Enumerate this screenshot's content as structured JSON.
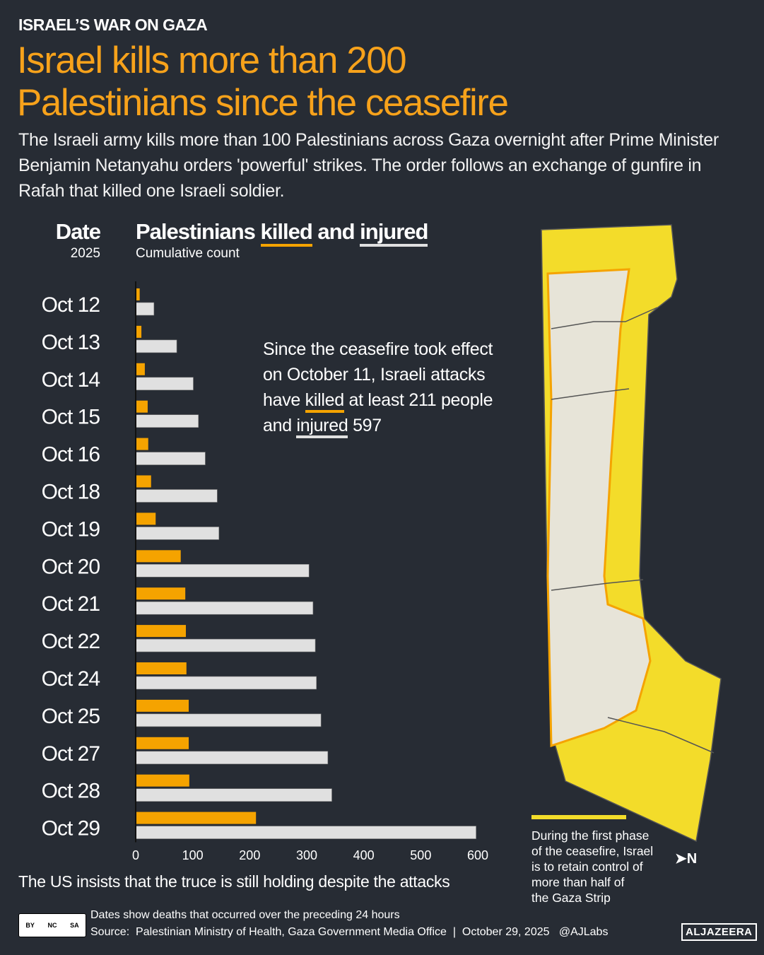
{
  "header": {
    "kicker": "ISRAEL’S WAR ON GAZA",
    "title_line1": "Israel kills more than 200",
    "title_line2": "Palestinians since the ceasefire",
    "subtitle": "The Israeli army kills more than 100 Palestinians across Gaza overnight after Prime Minister Benjamin Netanyahu orders 'powerful' strikes. The order follows an exchange of gunfire in Rafah that killed one Israeli soldier."
  },
  "chart_data": {
    "type": "bar",
    "orientation": "horizontal",
    "title_pre": "Palestinians ",
    "title_killed": "killed",
    "title_mid": " and ",
    "title_injured": "injured",
    "subtitle": "Cumulative count",
    "category_header": "Date",
    "category_subheader": "2025",
    "categories": [
      "Oct 12",
      "Oct 13",
      "Oct 14",
      "Oct 15",
      "Oct 16",
      "Oct 18",
      "Oct 19",
      "Oct 20",
      "Oct 21",
      "Oct 22",
      "Oct 24",
      "Oct 25",
      "Oct 27",
      "Oct 28",
      "Oct 29"
    ],
    "series": [
      {
        "name": "killed",
        "color": "#f5a300",
        "values": [
          7,
          10,
          16,
          21,
          22,
          27,
          35,
          79,
          87,
          88,
          89,
          93,
          93,
          94,
          211
        ]
      },
      {
        "name": "injured",
        "color": "#e0e0e0",
        "values": [
          32,
          72,
          101,
          110,
          122,
          143,
          146,
          304,
          311,
          315,
          317,
          325,
          337,
          344,
          597
        ]
      }
    ],
    "xlim": [
      0,
      600
    ],
    "xticks": [
      "0",
      "100",
      "200",
      "300",
      "400",
      "500",
      "600"
    ],
    "grid": false,
    "annotation": {
      "l1": "Since the ceasefire took effect",
      "l2": "on October 11, Israeli attacks",
      "l3a": "have ",
      "l3b": "killed",
      "l3c": " at least 211 people",
      "l4a": "and ",
      "l4b": "injured",
      "l4c": " 597"
    }
  },
  "map": {
    "legend_color": "#f3dc2a",
    "note_lines": [
      "During the first phase",
      "of the ceasefire, Israel",
      "is to retain control of",
      "more than half of",
      "the Gaza Strip"
    ],
    "north_label": "N"
  },
  "footer": {
    "us_note": "The US insists that the truce is still holding despite the attacks",
    "note": "Dates show deaths that occurred over the preceding 24 hours",
    "source": "Source:  Palestinian Ministry of Health, Gaza Government Media Office  |  October 29, 2025   @AJLabs",
    "license": [
      "BY",
      "NC",
      "SA"
    ],
    "logo": "ALJAZEERA"
  }
}
